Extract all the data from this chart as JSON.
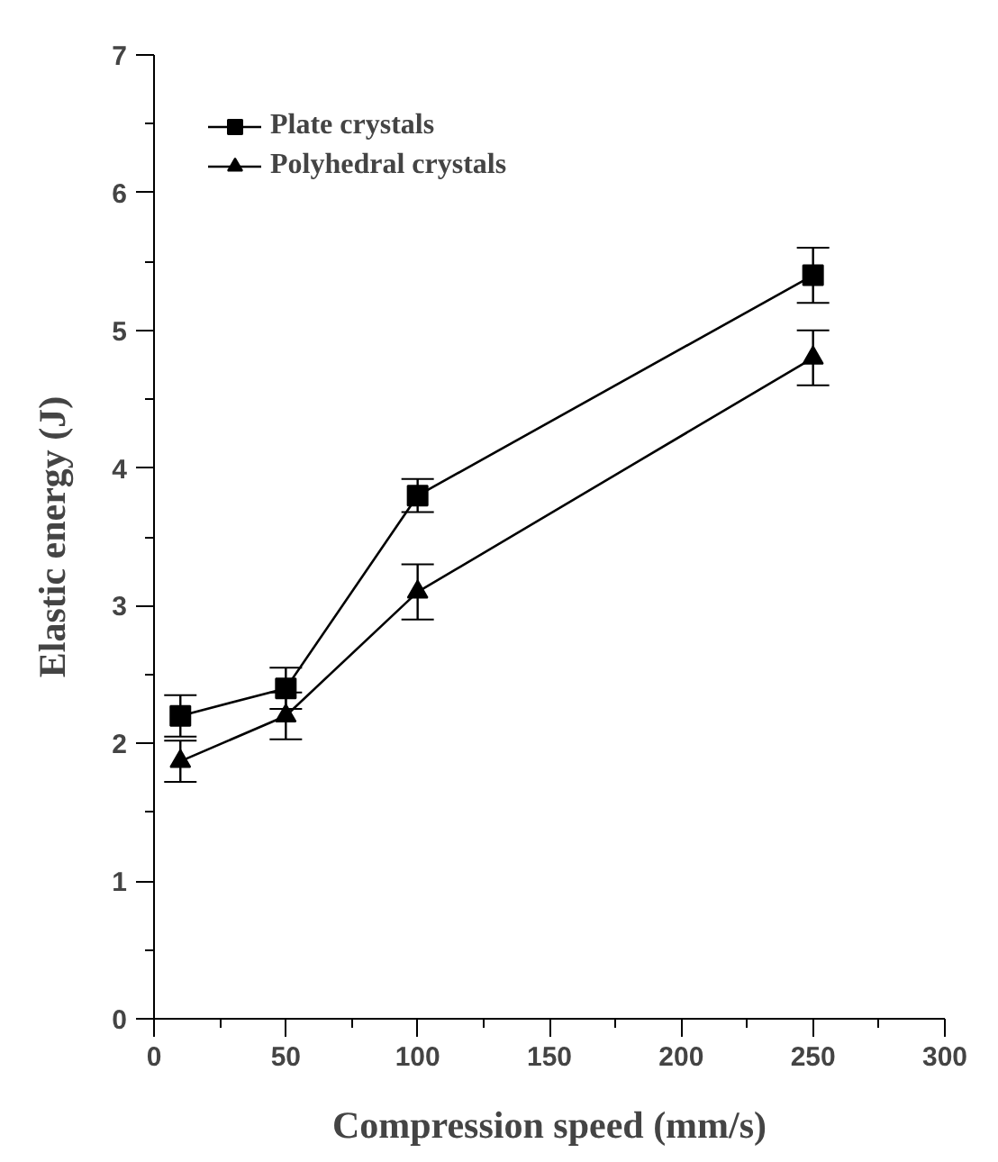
{
  "chart_data": {
    "type": "line",
    "xlabel": "Compression speed (mm/s)",
    "ylabel": "Elastic energy (J)",
    "xlim": [
      0,
      300
    ],
    "ylim": [
      0,
      7
    ],
    "xticks": [
      0,
      50,
      100,
      150,
      200,
      250,
      300
    ],
    "yticks": [
      0,
      1,
      2,
      3,
      4,
      5,
      6,
      7
    ],
    "grid": false,
    "legend": "top left",
    "line_style": "solid",
    "series": [
      {
        "name": "Plate crystals",
        "color": "#000000",
        "marker": "square",
        "x": [
          10,
          50,
          100,
          250
        ],
        "values": [
          2.2,
          2.4,
          3.8,
          5.4
        ],
        "errors": [
          0.15,
          0.15,
          0.12,
          0.2
        ]
      },
      {
        "name": "Polyhedral crystals",
        "color": "#000000",
        "marker": "triangle",
        "x": [
          10,
          50,
          100,
          250
        ],
        "values": [
          1.87,
          2.2,
          3.1,
          4.8
        ],
        "errors": [
          0.15,
          0.17,
          0.2,
          0.2
        ]
      }
    ]
  }
}
